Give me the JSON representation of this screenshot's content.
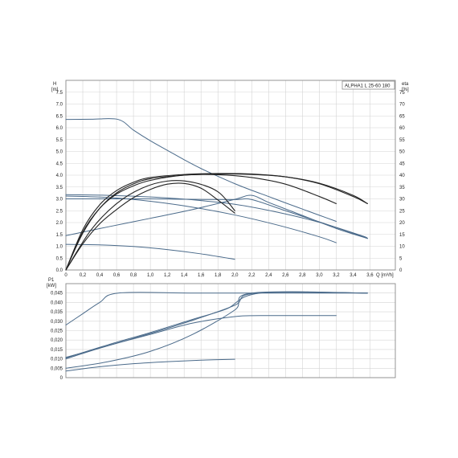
{
  "chart_data": [
    {
      "type": "line",
      "title": "ALPHA1 L 25-60 180",
      "ylabel_left": [
        "H",
        "[m]"
      ],
      "ylabel_right": [
        "eta",
        "[%]"
      ],
      "xlabel": "Q [m³/h]",
      "xlim": [
        0,
        3.9
      ],
      "ylim": [
        0,
        8
      ],
      "ylim_right": [
        0,
        80
      ],
      "x_ticks": [
        "0",
        "0,2",
        "0,4",
        "0,6",
        "0,8",
        "1,0",
        "1,2",
        "1,4",
        "1,6",
        "1,8",
        "2,0",
        "2,2",
        "2,4",
        "2,6",
        "2,8",
        "3,0",
        "3,2",
        "3,4",
        "3,6"
      ],
      "x_tick_values": [
        0,
        0.2,
        0.4,
        0.6,
        0.8,
        1.0,
        1.2,
        1.4,
        1.6,
        1.8,
        2.0,
        2.2,
        2.4,
        2.6,
        2.8,
        3.0,
        3.2,
        3.4,
        3.6
      ],
      "y_ticks_left": [
        "0.0",
        "0.5",
        "1.0",
        "1.5",
        "2.0",
        "2.5",
        "3.0",
        "3.5",
        "4.0",
        "4.5",
        "5.0",
        "5.5",
        "6.0",
        "6.5",
        "7.0",
        "7.5"
      ],
      "y_tick_values_left": [
        0,
        0.5,
        1.0,
        1.5,
        2.0,
        2.5,
        3.0,
        3.5,
        4.0,
        4.5,
        5.0,
        5.5,
        6.0,
        6.5,
        7.0,
        7.5
      ],
      "y_ticks_right": [
        "0",
        "5",
        "10",
        "15",
        "20",
        "25",
        "30",
        "35",
        "40",
        "45",
        "50",
        "55",
        "60",
        "65",
        "70",
        "75"
      ],
      "y_tick_values_right": [
        0,
        5,
        10,
        15,
        20,
        25,
        30,
        35,
        40,
        45,
        50,
        55,
        60,
        65,
        70,
        75
      ],
      "grid": true,
      "series": [
        {
          "axis": "left",
          "color": "#4a6a8a",
          "x": [
            0,
            0.3,
            0.62,
            0.8,
            1.0,
            1.2,
            1.4,
            1.6,
            1.8,
            2.0,
            2.2,
            2.4,
            2.6,
            2.8,
            3.0,
            3.2
          ],
          "y": [
            6.35,
            6.36,
            6.35,
            5.9,
            5.45,
            5.05,
            4.65,
            4.28,
            3.95,
            3.64,
            3.36,
            3.1,
            2.83,
            2.57,
            2.31,
            2.05
          ]
        },
        {
          "axis": "left",
          "color": "#4a6a8a",
          "x": [
            0,
            0.5,
            1.0,
            1.5,
            2.0,
            2.2,
            2.6,
            3.0,
            3.4,
            3.57
          ],
          "y": [
            3.0,
            3.0,
            3.0,
            2.98,
            2.97,
            2.97,
            2.5,
            2.03,
            1.55,
            1.33
          ]
        },
        {
          "axis": "left",
          "color": "#4a6a8a",
          "x": [
            0,
            0.5,
            1.0,
            1.5,
            2.0,
            2.5,
            3.0,
            3.5,
            3.57
          ],
          "y": [
            3.18,
            3.15,
            3.08,
            2.96,
            2.77,
            2.44,
            2.01,
            1.45,
            1.33
          ]
        },
        {
          "axis": "left",
          "color": "#4a6a8a",
          "x": [
            0,
            0.5,
            1.0,
            1.5,
            2.0,
            2.5,
            3.0,
            3.2
          ],
          "y": [
            3.12,
            3.06,
            2.9,
            2.65,
            2.32,
            1.9,
            1.4,
            1.15
          ]
        },
        {
          "axis": "left",
          "color": "#4a6a8a",
          "x": [
            0,
            0.5,
            1.0,
            1.5,
            2.0,
            2.2,
            2.4,
            2.8,
            3.2,
            3.57
          ],
          "y": [
            1.45,
            1.82,
            2.18,
            2.55,
            2.98,
            3.15,
            2.85,
            2.3,
            1.75,
            1.33
          ]
        },
        {
          "axis": "left",
          "color": "#4a6a8a",
          "x": [
            0,
            0.4,
            0.8,
            1.2,
            1.6,
            2.0
          ],
          "y": [
            1.08,
            1.06,
            0.99,
            0.86,
            0.68,
            0.45
          ]
        },
        {
          "axis": "right",
          "color": "#222222",
          "x": [
            0,
            0.2,
            0.4,
            0.6,
            0.8,
            1.0,
            1.2,
            1.4,
            1.6,
            1.8,
            2.0
          ],
          "y": [
            0,
            11,
            19.5,
            25.5,
            30.5,
            34,
            36.2,
            36.5,
            34.5,
            29.5,
            24
          ]
        },
        {
          "axis": "right",
          "color": "#222222",
          "x": [
            0,
            0.3,
            0.6,
            0.9,
            1.2,
            1.5,
            1.8,
            2.0
          ],
          "y": [
            0,
            17,
            28,
            34.5,
            37.5,
            37,
            33,
            25
          ]
        },
        {
          "axis": "right",
          "color": "#222222",
          "x": [
            0,
            0.2,
            0.4,
            0.6,
            0.8,
            1.0,
            1.4,
            1.8,
            2.2,
            2.6,
            3.0,
            3.2
          ],
          "y": [
            0,
            16,
            26,
            32,
            35.5,
            37.8,
            40,
            40.2,
            39,
            36.2,
            31,
            28
          ]
        },
        {
          "axis": "right",
          "color": "#222222",
          "x": [
            0,
            0.2,
            0.4,
            0.6,
            0.8,
            1.0,
            1.4,
            1.8,
            2.2,
            2.6,
            3.0,
            3.4,
            3.57
          ],
          "y": [
            0,
            17,
            27.5,
            33.5,
            37,
            39,
            40.3,
            40.7,
            40.5,
            39.3,
            36.4,
            31,
            28
          ]
        },
        {
          "axis": "right",
          "color": "#222222",
          "x": [
            0,
            0.2,
            0.4,
            0.6,
            0.8,
            1.0,
            1.4,
            1.8,
            2.2,
            2.6,
            3.0,
            3.4,
            3.57
          ],
          "y": [
            0,
            15.5,
            26,
            32.5,
            36.3,
            38.5,
            40,
            40.5,
            40.3,
            39.3,
            36.6,
            31.5,
            28
          ]
        }
      ]
    },
    {
      "type": "line",
      "ylabel": [
        "P1",
        "[kW]"
      ],
      "xlim": [
        0,
        3.9
      ],
      "ylim": [
        0,
        0.05
      ],
      "y_ticks": [
        "0",
        "0,005",
        "0,010",
        "0,015",
        "0,020",
        "0,025",
        "0,030",
        "0,035",
        "0,040",
        "0,045"
      ],
      "y_tick_values": [
        0,
        0.005,
        0.01,
        0.015,
        0.02,
        0.025,
        0.03,
        0.035,
        0.04,
        0.045
      ],
      "grid": true,
      "series": [
        {
          "color": "#4a6a8a",
          "x": [
            0,
            0.2,
            0.4,
            0.62,
            1.5,
            2.5,
            3.57
          ],
          "y": [
            0.028,
            0.034,
            0.04,
            0.045,
            0.045,
            0.045,
            0.045
          ]
        },
        {
          "color": "#4a6a8a",
          "x": [
            0,
            0.5,
            1.0,
            1.5,
            1.9,
            2.3,
            3.57
          ],
          "y": [
            0.0105,
            0.0175,
            0.024,
            0.031,
            0.0365,
            0.045,
            0.045
          ]
        },
        {
          "color": "#4a6a8a",
          "x": [
            0,
            0.5,
            1.0,
            1.5,
            2.0,
            2.25,
            3.57
          ],
          "y": [
            0.0108,
            0.017,
            0.0235,
            0.0305,
            0.0385,
            0.045,
            0.045
          ]
        },
        {
          "color": "#4a6a8a",
          "x": [
            0,
            0.5,
            1.0,
            1.5,
            2.0,
            2.3,
            3.2
          ],
          "y": [
            0.01,
            0.017,
            0.023,
            0.029,
            0.0325,
            0.033,
            0.033
          ]
        },
        {
          "color": "#4a6a8a",
          "x": [
            0,
            0.5,
            1.0,
            1.5,
            2.0,
            2.2,
            3.57
          ],
          "y": [
            0.005,
            0.0085,
            0.014,
            0.023,
            0.036,
            0.045,
            0.045
          ]
        },
        {
          "color": "#4a6a8a",
          "x": [
            0,
            0.4,
            0.8,
            1.2,
            1.6,
            2.0
          ],
          "y": [
            0.0035,
            0.0058,
            0.0074,
            0.0085,
            0.0093,
            0.0098
          ]
        }
      ]
    }
  ]
}
